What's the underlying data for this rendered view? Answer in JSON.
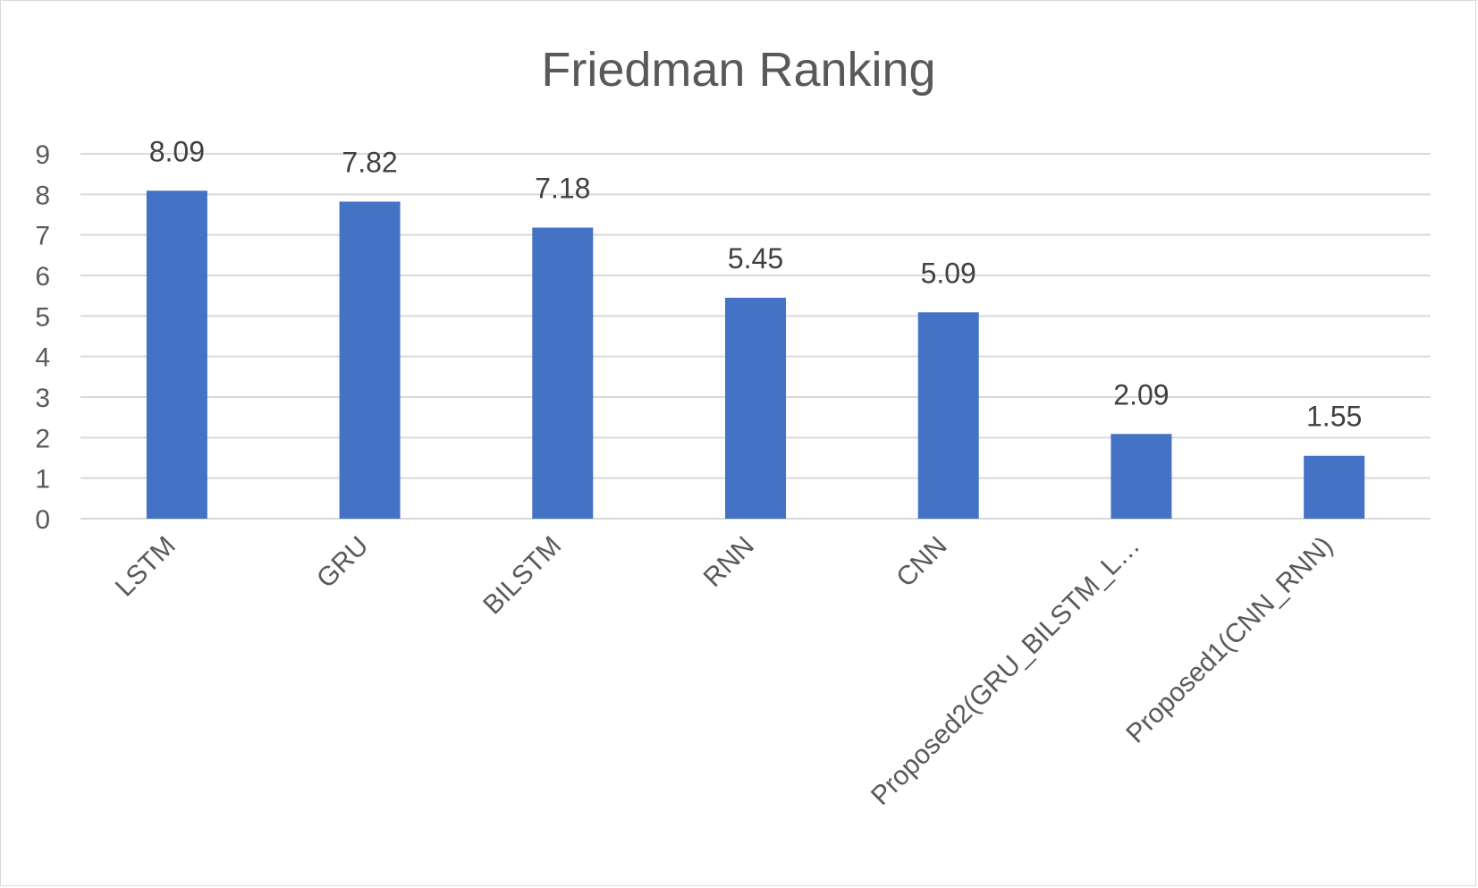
{
  "chart_data": {
    "type": "bar",
    "title": "Friedman Ranking",
    "categories": [
      "LSTM",
      "GRU",
      "BILSTM",
      "RNN",
      "CNN",
      "Proposed2(GRU_BILSTM_L…",
      "Proposed1(CNN_RNN)"
    ],
    "values": [
      8.09,
      7.82,
      7.18,
      5.45,
      5.09,
      2.09,
      1.55
    ],
    "data_labels": [
      "8.09",
      "7.82",
      "7.18",
      "5.45",
      "5.09",
      "2.09",
      "1.55"
    ],
    "y_ticks": [
      "0",
      "1",
      "2",
      "3",
      "4",
      "5",
      "6",
      "7",
      "8",
      "9"
    ],
    "ylim": [
      0,
      9
    ],
    "grid": true,
    "legend": "none",
    "colors": {
      "bar": "#4472C4",
      "grid": "#d9d9d9",
      "text": "#595959",
      "value_text": "#404040",
      "border": "#d9d9d9"
    }
  }
}
